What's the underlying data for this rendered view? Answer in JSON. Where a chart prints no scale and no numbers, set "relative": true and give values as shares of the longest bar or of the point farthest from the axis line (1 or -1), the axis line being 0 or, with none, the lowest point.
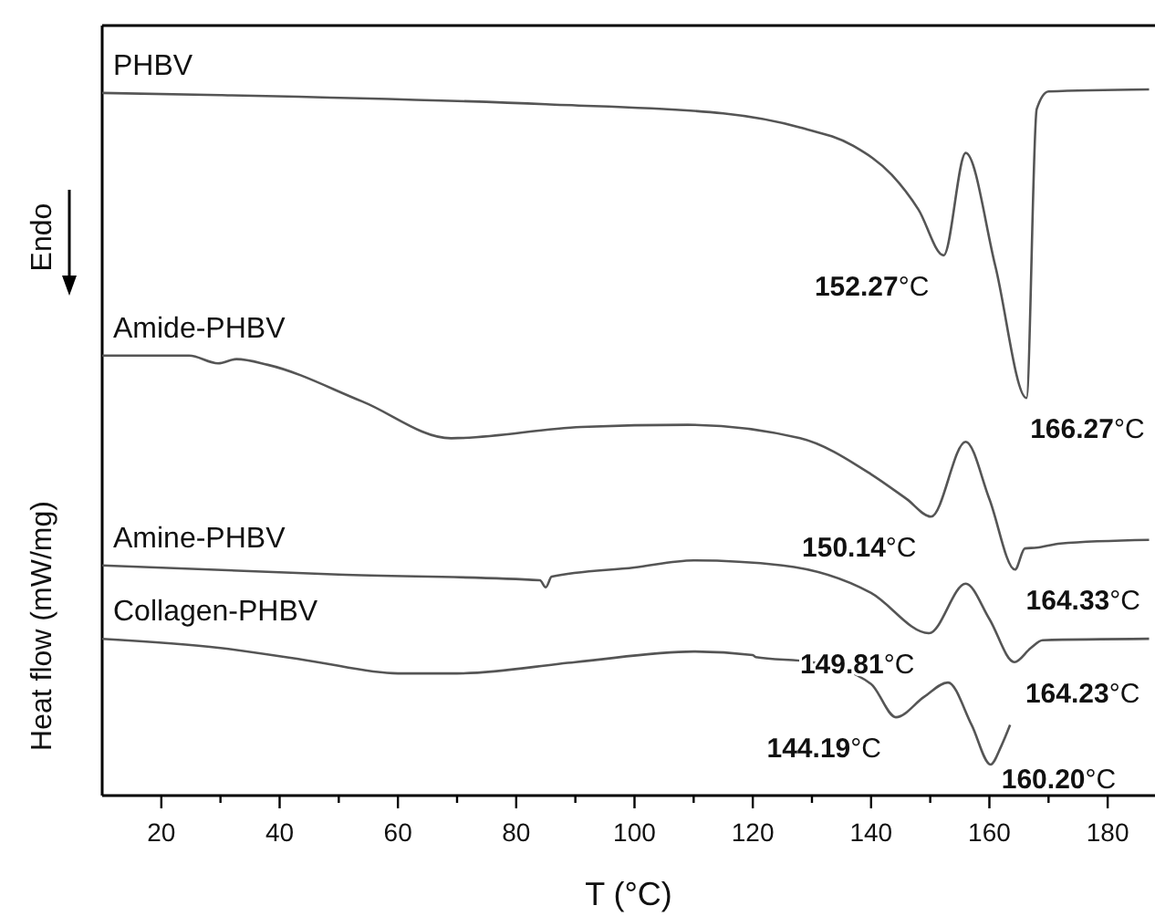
{
  "chart_data": {
    "type": "line",
    "relative": true,
    "xlabel": "T (°C)",
    "ylabel": "Heat flow (mW/mg)",
    "xlim": [
      10,
      188
    ],
    "xticks": [
      20,
      {
        "value": 30,
        "label": null
      },
      40,
      {
        "value": 50,
        "label": null
      },
      60,
      {
        "value": 70,
        "label": null
      },
      80,
      {
        "value": 90,
        "label": null
      },
      100,
      {
        "value": 110,
        "label": null
      },
      120,
      {
        "value": 130,
        "label": null
      },
      140,
      {
        "value": 150,
        "label": null
      },
      160,
      {
        "value": 170,
        "label": null
      },
      180
    ],
    "grid": false,
    "marker": "none",
    "line_style": "solid",
    "series": [
      {
        "name": "PHBV",
        "color": "#555555",
        "x": [
          10,
          30,
          85,
          115,
          128,
          137,
          143.5,
          148,
          152.27,
          156,
          161,
          166.27,
          168,
          170,
          187
        ],
        "values": [
          0.995,
          0.992,
          0.979,
          0.966,
          0.946,
          0.92,
          0.879,
          0.83,
          0.765,
          0.91,
          0.75,
          0.563,
          0.972,
          0.997,
          1.0
        ]
      },
      {
        "name": "Amide-PHBV",
        "color": "#555555",
        "x": [
          10,
          24.7,
          29.6,
          32.7,
          38,
          54,
          69,
          91,
          109,
          128,
          140,
          146,
          150.14,
          156,
          160,
          164.33,
          166,
          168,
          172,
          187
        ],
        "values": [
          0.623,
          0.623,
          0.612,
          0.618,
          0.61,
          0.558,
          0.506,
          0.522,
          0.525,
          0.506,
          0.455,
          0.42,
          0.395,
          0.501,
          0.42,
          0.32,
          0.35,
          0.351,
          0.357,
          0.362
        ]
      },
      {
        "name": "Amine-PHBV",
        "color": "#555555",
        "x": [
          10,
          50,
          84,
          85,
          86,
          100,
          110,
          125,
          140,
          149.81,
          156,
          160,
          164.23,
          167,
          169,
          187
        ],
        "values": [
          0.326,
          0.313,
          0.305,
          0.295,
          0.31,
          0.323,
          0.333,
          0.326,
          0.287,
          0.23,
          0.3,
          0.25,
          0.189,
          0.209,
          0.22,
          0.222
        ]
      },
      {
        "name": "Collagen-PHBV",
        "color": "#555555",
        "x": [
          10,
          30,
          45,
          60,
          70,
          90,
          110,
          120,
          120.5,
          130,
          140,
          144.19,
          149,
          153,
          157,
          160.2,
          162,
          163.5
        ],
        "values": [
          0.222,
          0.209,
          0.191,
          0.173,
          0.173,
          0.189,
          0.204,
          0.199,
          0.196,
          0.189,
          0.158,
          0.111,
          0.14,
          0.16,
          0.1,
          0.044,
          0.07,
          0.1
        ]
      }
    ],
    "annotations": [
      {
        "text": "Endo"
      },
      {
        "text": "152.27°C",
        "x": 152.27,
        "y": 0.765
      },
      {
        "text": "166.27°C",
        "x": 166.27,
        "y": 0.563
      },
      {
        "text": "150.14°C",
        "x": 150.14,
        "y": 0.395
      },
      {
        "text": "164.33°C",
        "x": 164.33,
        "y": 0.32
      },
      {
        "text": "149.81°C",
        "x": 149.81,
        "y": 0.23
      },
      {
        "text": "164.23°C",
        "x": 164.23,
        "y": 0.189
      },
      {
        "text": "144.19°C",
        "x": 144.19,
        "y": 0.111
      },
      {
        "text": "160.20°C",
        "x": 160.2,
        "y": 0.044
      }
    ]
  }
}
